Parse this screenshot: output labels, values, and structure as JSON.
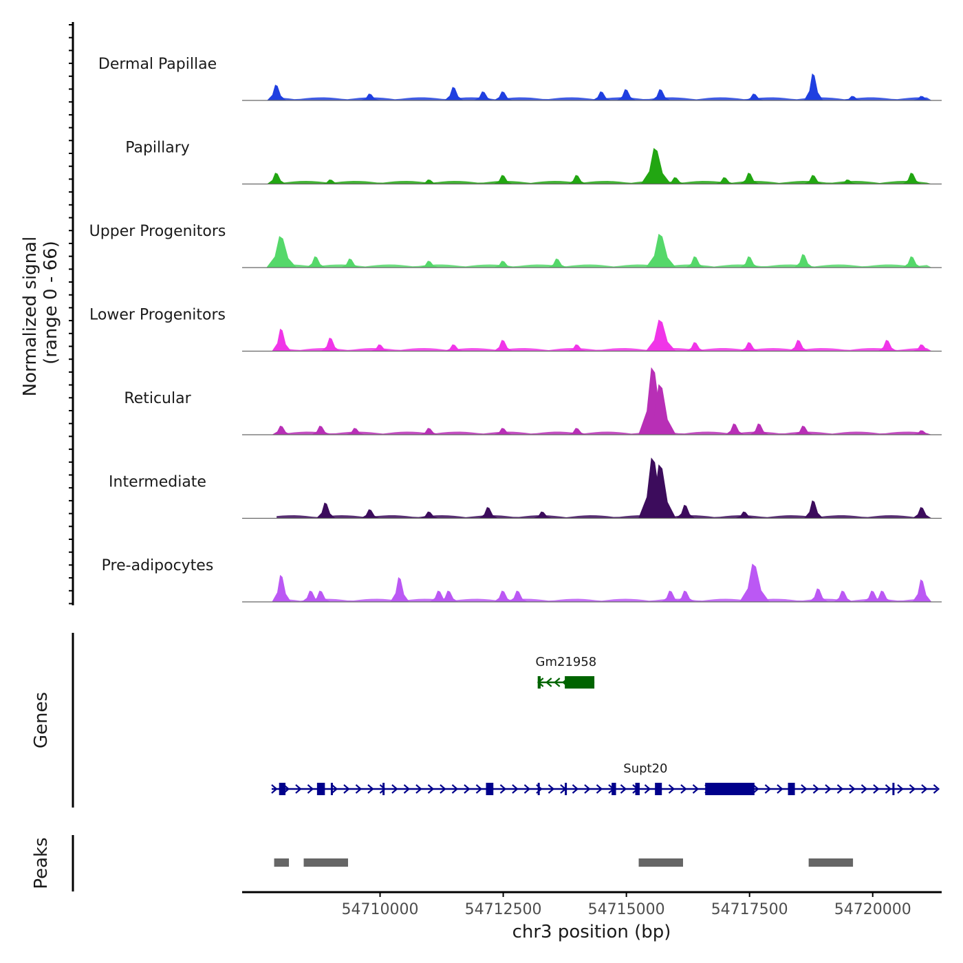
{
  "chart_data": {
    "type": "area",
    "title": "",
    "ylabel_line1": "Normalized signal",
    "ylabel_line2": "(range 0 - 66)",
    "xlabel": "chr3 position (bp)",
    "xlim": [
      54707200,
      54721400
    ],
    "x_ticks": [
      54710000,
      54712500,
      54715000,
      54717500,
      54720000
    ],
    "x_tick_labels": [
      "54710000",
      "54712500",
      "54715000",
      "54717500",
      "54720000"
    ],
    "ylim": [
      0,
      66
    ],
    "tracks": [
      {
        "name": "Dermal Papillae",
        "color": "#1f3fe0",
        "peaks": [
          [
            54707900,
            14
          ],
          [
            54709800,
            6
          ],
          [
            54711500,
            12
          ],
          [
            54712100,
            8
          ],
          [
            54712500,
            8
          ],
          [
            54714500,
            8
          ],
          [
            54715000,
            10
          ],
          [
            54715700,
            10
          ],
          [
            54717600,
            6
          ],
          [
            54718800,
            24
          ],
          [
            54719600,
            4
          ],
          [
            54721000,
            4
          ]
        ]
      },
      {
        "name": "Papillary",
        "color": "#22a612",
        "peaks": [
          [
            54707900,
            10
          ],
          [
            54709000,
            4
          ],
          [
            54711000,
            4
          ],
          [
            54712500,
            8
          ],
          [
            54714000,
            8
          ],
          [
            54715600,
            32
          ],
          [
            54716000,
            6
          ],
          [
            54717000,
            6
          ],
          [
            54717500,
            10
          ],
          [
            54718800,
            8
          ],
          [
            54719500,
            4
          ],
          [
            54720800,
            10
          ]
        ]
      },
      {
        "name": "Upper Progenitors",
        "color": "#55d86a",
        "peaks": [
          [
            54708000,
            28
          ],
          [
            54708700,
            10
          ],
          [
            54709400,
            8
          ],
          [
            54711000,
            6
          ],
          [
            54712500,
            6
          ],
          [
            54713600,
            8
          ],
          [
            54715700,
            30
          ],
          [
            54716400,
            10
          ],
          [
            54717500,
            10
          ],
          [
            54718600,
            12
          ],
          [
            54720800,
            10
          ]
        ]
      },
      {
        "name": "Lower Progenitors",
        "color": "#f035e8",
        "peaks": [
          [
            54708000,
            20
          ],
          [
            54709000,
            12
          ],
          [
            54710000,
            6
          ],
          [
            54711500,
            6
          ],
          [
            54712500,
            10
          ],
          [
            54714000,
            6
          ],
          [
            54715700,
            28
          ],
          [
            54716400,
            8
          ],
          [
            54717500,
            8
          ],
          [
            54718500,
            10
          ],
          [
            54720300,
            10
          ],
          [
            54721000,
            6
          ]
        ]
      },
      {
        "name": "Reticular",
        "color": "#b82fb6",
        "peaks": [
          [
            54708000,
            8
          ],
          [
            54708800,
            8
          ],
          [
            54709500,
            6
          ],
          [
            54711000,
            6
          ],
          [
            54712500,
            6
          ],
          [
            54714000,
            6
          ],
          [
            54715550,
            60
          ],
          [
            54715700,
            45
          ],
          [
            54717200,
            10
          ],
          [
            54717700,
            10
          ],
          [
            54718600,
            8
          ],
          [
            54721000,
            4
          ]
        ]
      },
      {
        "name": "Intermediate",
        "color": "#3c0c5c",
        "peaks": [
          [
            54708900,
            14
          ],
          [
            54709800,
            8
          ],
          [
            54711000,
            6
          ],
          [
            54712200,
            10
          ],
          [
            54713300,
            6
          ],
          [
            54715550,
            54
          ],
          [
            54715700,
            48
          ],
          [
            54716200,
            12
          ],
          [
            54717400,
            6
          ],
          [
            54718800,
            16
          ],
          [
            54721000,
            10
          ]
        ]
      },
      {
        "name": "Pre-adipocytes",
        "color": "#bb58f4",
        "peaks": [
          [
            54708000,
            24
          ],
          [
            54708600,
            10
          ],
          [
            54708800,
            10
          ],
          [
            54710400,
            22
          ],
          [
            54711200,
            10
          ],
          [
            54711400,
            10
          ],
          [
            54712500,
            10
          ],
          [
            54712800,
            10
          ],
          [
            54715900,
            10
          ],
          [
            54716200,
            10
          ],
          [
            54717600,
            34
          ],
          [
            54718900,
            12
          ],
          [
            54719400,
            10
          ],
          [
            54720000,
            10
          ],
          [
            54720200,
            10
          ],
          [
            54721000,
            20
          ]
        ]
      }
    ],
    "genes_label": "Genes",
    "genes": [
      {
        "name": "Gm21958",
        "strand": "-",
        "color": "#006400",
        "start": 54713200,
        "end": 54714350,
        "exons": [
          [
            54713200,
            54713260
          ],
          [
            54713750,
            54714350
          ]
        ],
        "row": 0
      },
      {
        "name": "Supt20",
        "strand": "+",
        "color": "#00008b",
        "start": 54707800,
        "end": 54721300,
        "exons": [
          [
            54707950,
            54708080
          ],
          [
            54708720,
            54708880
          ],
          [
            54709000,
            54709040
          ],
          [
            54710050,
            54710090
          ],
          [
            54712150,
            54712300
          ],
          [
            54713200,
            54713230
          ],
          [
            54713750,
            54713780
          ],
          [
            54714700,
            54714790
          ],
          [
            54715180,
            54715270
          ],
          [
            54715580,
            54715720
          ],
          [
            54716600,
            54717600
          ],
          [
            54718280,
            54718420
          ],
          [
            54720400,
            54720440
          ]
        ],
        "row": 1
      }
    ],
    "peaks_label": "Peaks",
    "peak_regions": [
      [
        54707850,
        54708150
      ],
      [
        54708450,
        54709350
      ],
      [
        54715250,
        54716150
      ],
      [
        54718700,
        54719600
      ]
    ]
  }
}
